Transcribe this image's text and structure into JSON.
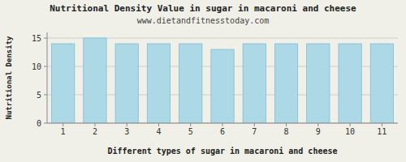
{
  "chart_data": {
    "type": "bar",
    "title": "Nutritional Density Value in sugar in macaroni and cheese",
    "subtitle": "www.dietandfitnesstoday.com",
    "x_label": "Different types of sugar in macaroni and cheese",
    "y_label": "Nutritional Density",
    "categories": [
      1,
      2,
      3,
      4,
      5,
      6,
      7,
      8,
      9,
      10,
      11
    ],
    "values": [
      14.0,
      15.0,
      14.0,
      14.0,
      14.0,
      13.0,
      14.0,
      14.0,
      14.0,
      14.0,
      14.0
    ],
    "color": "#add8e6",
    "ylim": [
      0,
      16
    ],
    "yticks": [
      0,
      5,
      10,
      15
    ],
    "grid": true
  }
}
